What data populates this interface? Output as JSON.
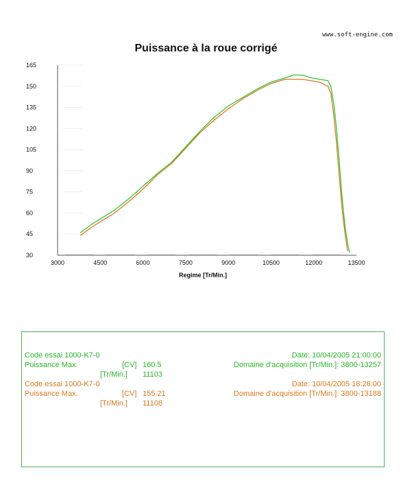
{
  "header": {
    "url": "www.soft-engine.com"
  },
  "chart_data": {
    "type": "line",
    "title": "Puissance à la roue corrigé",
    "xlabel": "Regime [Tr/Min.]",
    "ylabel": "",
    "xlim": [
      3000,
      13500
    ],
    "ylim": [
      30,
      165
    ],
    "xticks": [
      3000,
      4500,
      6000,
      7500,
      9000,
      10500,
      12000,
      13500
    ],
    "yticks": [
      30,
      45,
      60,
      75,
      90,
      105,
      120,
      135,
      150,
      165
    ],
    "grid": false,
    "series": [
      {
        "name": "Code essai 1000-K7-0 (21:00)",
        "color": "#33c233",
        "x": [
          3800,
          4200,
          4600,
          5000,
          5500,
          6000,
          6500,
          7000,
          7500,
          8000,
          8500,
          9000,
          9500,
          10000,
          10500,
          11000,
          11300,
          11600,
          11900,
          12200,
          12500,
          12600,
          12700,
          12800,
          12900,
          13000,
          13100,
          13200,
          13257
        ],
        "y": [
          46,
          52,
          57,
          62,
          70,
          79,
          88,
          96,
          107,
          118,
          128,
          136,
          142,
          148,
          153,
          156,
          158,
          158,
          156,
          155,
          154,
          150,
          138,
          120,
          95,
          70,
          50,
          37,
          32
        ]
      },
      {
        "name": "Code essai 1000-K7-0 (18:26)",
        "color": "#d9781f",
        "x": [
          3800,
          4200,
          4600,
          5000,
          5500,
          6000,
          6500,
          7000,
          7500,
          8000,
          8500,
          9000,
          9500,
          10000,
          10500,
          11000,
          11300,
          11600,
          11900,
          12200,
          12500,
          12600,
          12700,
          12800,
          12900,
          13000,
          13100,
          13188
        ],
        "y": [
          44,
          50,
          55,
          60,
          68,
          77,
          87,
          95,
          106,
          117,
          126,
          134,
          141,
          147,
          152,
          155,
          155,
          155,
          154,
          153,
          150,
          145,
          130,
          110,
          85,
          62,
          45,
          33
        ]
      }
    ]
  },
  "results": {
    "run1": {
      "code": "Code essai 1000-K7-0",
      "date": "Date: 10/04/2005 21:00:00",
      "pmax_label": "Puissance Max.",
      "pmax_unit": "[CV]",
      "pmax_value": "160.5",
      "rpm_unit": "[Tr/Min.]",
      "rpm_value": "11103",
      "domain": "Domaine d'acquisition [Tr/Min.]: 3800-13257"
    },
    "run2": {
      "code": "Code essai 1000-K7-0",
      "date": "Date: 10/04/2005 18:26:00",
      "pmax_label": "Puissance Max.",
      "pmax_unit": "[CV]",
      "pmax_value": "155.21",
      "rpm_unit": "[Tr/Min.]",
      "rpm_value": "11108",
      "domain": "Domaine d'acquisition [Tr/Min.]: 3800-13188"
    }
  }
}
